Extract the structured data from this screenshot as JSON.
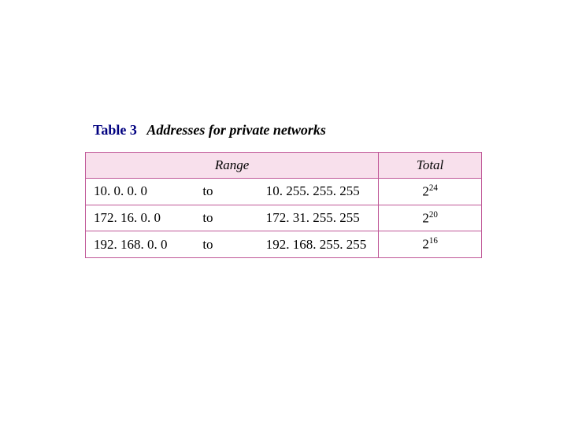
{
  "caption": {
    "label": "Table 3",
    "title": "Addresses for private networks"
  },
  "table": {
    "type": "table",
    "border_color": "#c05898",
    "header_bg": "#f8e0ec",
    "row_bg": "#ffffff",
    "text_color": "#000000",
    "columns": {
      "range": "Range",
      "total": "Total"
    },
    "rows": [
      {
        "start": "10. 0. 0. 0",
        "sep": "to",
        "end": "10. 255. 255. 255",
        "total_base": "2",
        "total_exp": "24"
      },
      {
        "start": "172. 16. 0. 0",
        "sep": "to",
        "end": "172. 31. 255. 255",
        "total_base": "2",
        "total_exp": "20"
      },
      {
        "start": "192. 168. 0. 0",
        "sep": "to",
        "end": "192. 168. 255. 255",
        "total_base": "2",
        "total_exp": "16"
      }
    ]
  }
}
